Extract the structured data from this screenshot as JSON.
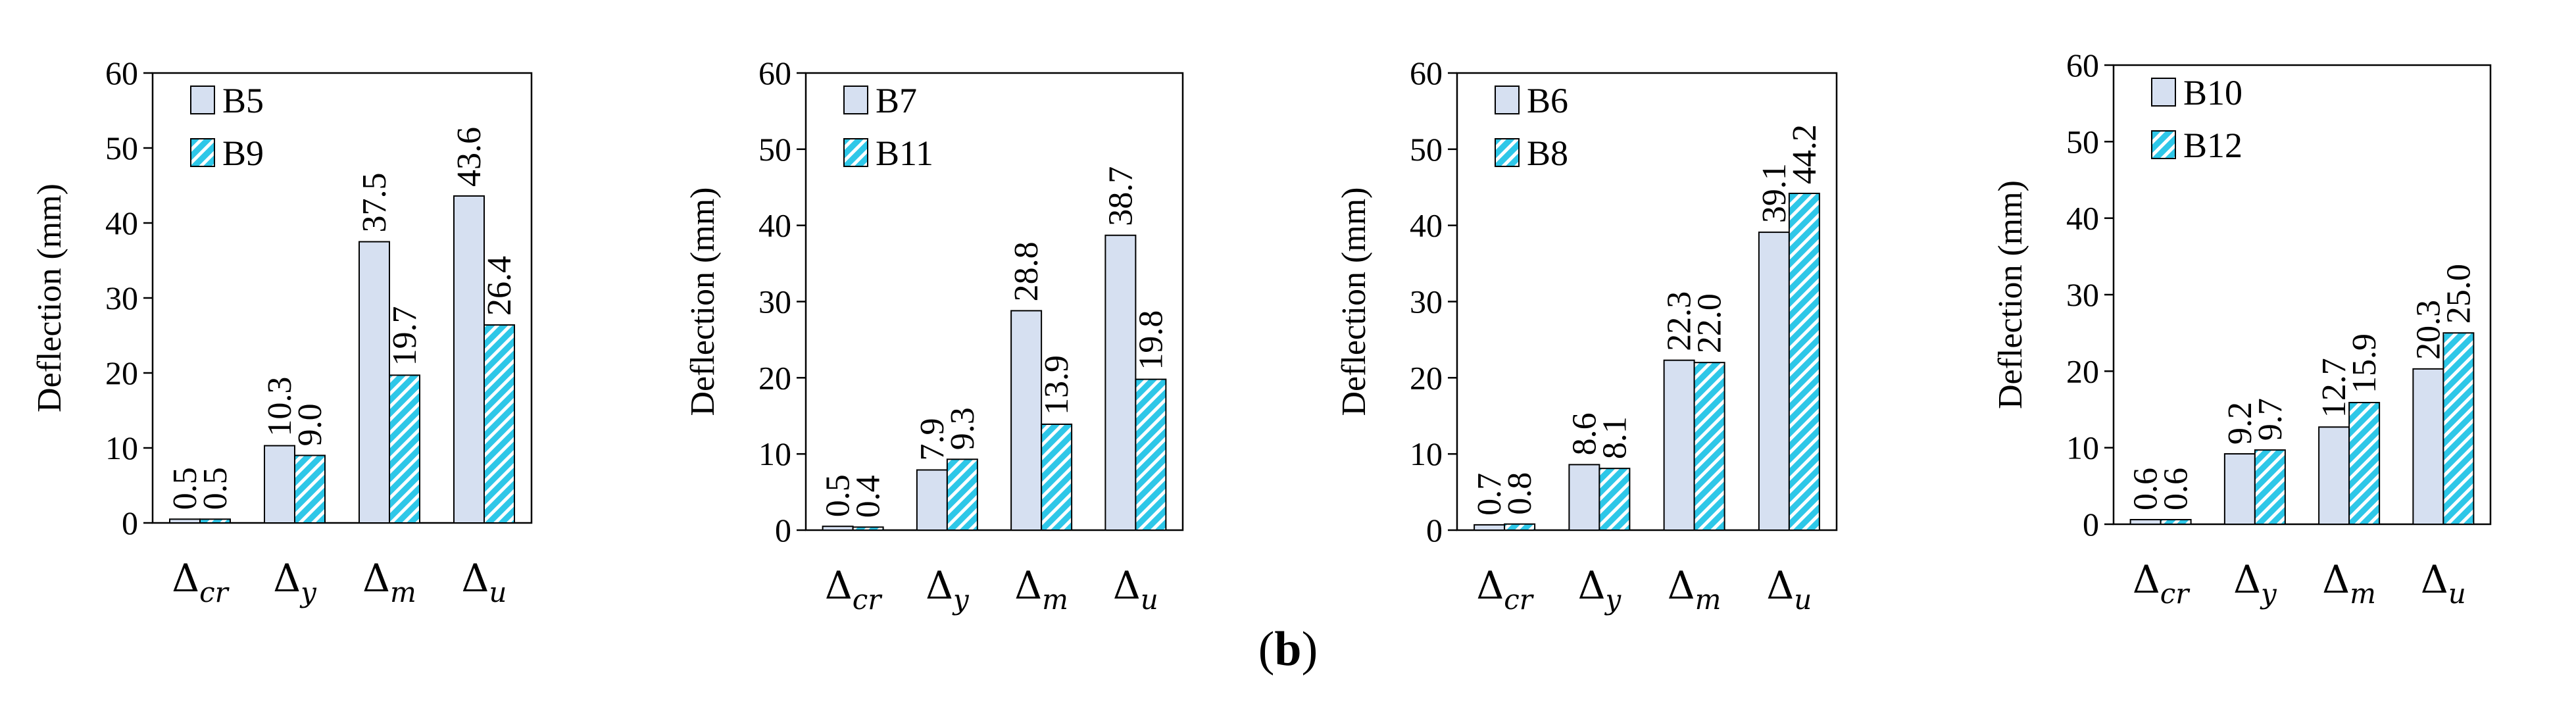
{
  "caption": {
    "open": "(",
    "letter": "b",
    "close": ")"
  },
  "chart_data": [
    {
      "type": "bar",
      "ylabel": "Deflection (mm)",
      "ylim": [
        0,
        60
      ],
      "yticks": [
        0,
        10,
        20,
        30,
        40,
        50,
        60
      ],
      "categories": [
        {
          "symbol": "Δ",
          "sub": "cr"
        },
        {
          "symbol": "Δ",
          "sub": "y"
        },
        {
          "symbol": "Δ",
          "sub": "m"
        },
        {
          "symbol": "Δ",
          "sub": "u"
        }
      ],
      "legend": "top-left",
      "series": [
        {
          "name": "B5",
          "values": [
            0.5,
            10.3,
            37.5,
            43.6
          ],
          "labels": [
            "0.5",
            "10.3",
            "37.5",
            "43.6"
          ],
          "style": "solid",
          "color": "#d6e0f1"
        },
        {
          "name": "B9",
          "values": [
            0.5,
            9.0,
            19.7,
            26.4
          ],
          "labels": [
            "0.5",
            "9.0",
            "19.7",
            "26.4"
          ],
          "style": "hatched",
          "color": "#2ec7e8"
        }
      ]
    },
    {
      "type": "bar",
      "ylabel": "Deflection (mm)",
      "ylim": [
        0,
        60
      ],
      "yticks": [
        0,
        10,
        20,
        30,
        40,
        50,
        60
      ],
      "categories": [
        {
          "symbol": "Δ",
          "sub": "cr"
        },
        {
          "symbol": "Δ",
          "sub": "y"
        },
        {
          "symbol": "Δ",
          "sub": "m"
        },
        {
          "symbol": "Δ",
          "sub": "u"
        }
      ],
      "legend": "top-left",
      "series": [
        {
          "name": "B7",
          "values": [
            0.5,
            7.9,
            28.8,
            38.7
          ],
          "labels": [
            "0.5",
            "7.9",
            "28.8",
            "38.7"
          ],
          "style": "solid",
          "color": "#d6e0f1"
        },
        {
          "name": "B11",
          "values": [
            0.4,
            9.3,
            13.9,
            19.8
          ],
          "labels": [
            "0.4",
            "9.3",
            "13.9",
            "19.8"
          ],
          "style": "hatched",
          "color": "#2ec7e8"
        }
      ]
    },
    {
      "type": "bar",
      "ylabel": "Deflection (mm)",
      "ylim": [
        0,
        60
      ],
      "yticks": [
        0,
        10,
        20,
        30,
        40,
        50,
        60
      ],
      "categories": [
        {
          "symbol": "Δ",
          "sub": "cr"
        },
        {
          "symbol": "Δ",
          "sub": "y"
        },
        {
          "symbol": "Δ",
          "sub": "m"
        },
        {
          "symbol": "Δ",
          "sub": "u"
        }
      ],
      "legend": "top-left",
      "series": [
        {
          "name": "B6",
          "values": [
            0.7,
            8.6,
            22.3,
            39.1
          ],
          "labels": [
            "0.7",
            "8.6",
            "22.3",
            "39.1"
          ],
          "style": "solid",
          "color": "#d6e0f1"
        },
        {
          "name": "B8",
          "values": [
            0.8,
            8.1,
            22.0,
            44.2
          ],
          "labels": [
            "0.8",
            "8.1",
            "22.0",
            "44.2"
          ],
          "style": "hatched",
          "color": "#2ec7e8"
        }
      ]
    },
    {
      "type": "bar",
      "ylabel": "Deflection (mm)",
      "ylim": [
        0,
        60
      ],
      "yticks": [
        0,
        10,
        20,
        30,
        40,
        50,
        60
      ],
      "categories": [
        {
          "symbol": "Δ",
          "sub": "cr"
        },
        {
          "symbol": "Δ",
          "sub": "y"
        },
        {
          "symbol": "Δ",
          "sub": "m"
        },
        {
          "symbol": "Δ",
          "sub": "u"
        }
      ],
      "legend": "top-left",
      "series": [
        {
          "name": "B10",
          "values": [
            0.6,
            9.2,
            12.7,
            20.3
          ],
          "labels": [
            "0.6",
            "9.2",
            "12.7",
            "20.3"
          ],
          "style": "solid",
          "color": "#d6e0f1"
        },
        {
          "name": "B12",
          "values": [
            0.6,
            9.7,
            15.9,
            25.0
          ],
          "labels": [
            "0.6",
            "9.7",
            "15.9",
            "25.0"
          ],
          "style": "hatched",
          "color": "#2ec7e8"
        }
      ]
    }
  ]
}
